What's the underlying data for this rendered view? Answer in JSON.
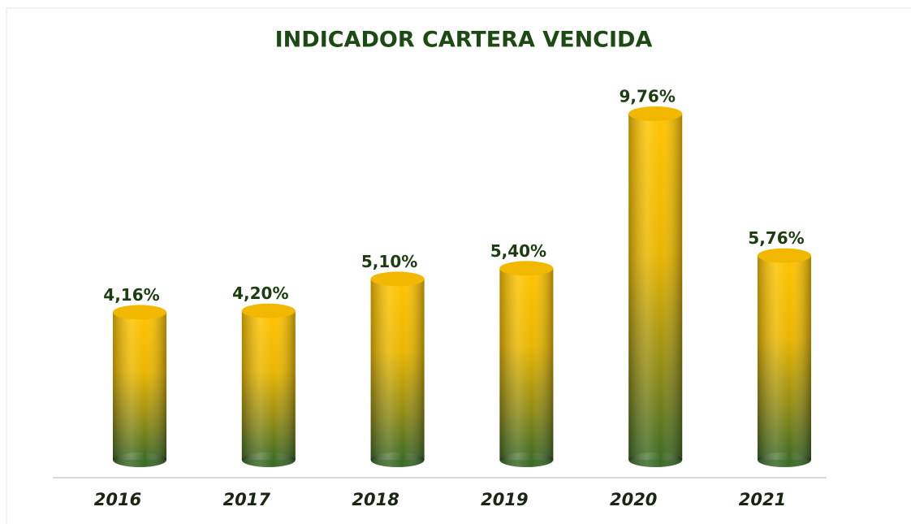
{
  "chart_data": {
    "type": "bar",
    "title": "INDICADOR CARTERA VENCIDA",
    "categories": [
      "2016",
      "2017",
      "2018",
      "2019",
      "2020",
      "2021"
    ],
    "values": [
      4.16,
      4.2,
      5.1,
      5.4,
      9.76,
      5.76
    ],
    "value_labels": [
      "4,16%",
      "4,20%",
      "5,10%",
      "5,40%",
      "9,76%",
      "5,76%"
    ],
    "color": "#ffc000"
  }
}
